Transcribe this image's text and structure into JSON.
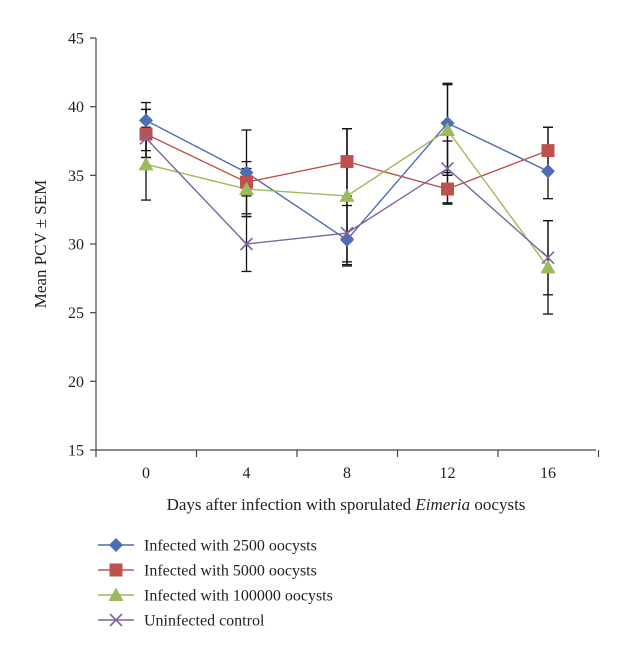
{
  "chart_data": {
    "type": "line",
    "title": "",
    "xlabel": "Days after infection with sporulated Eimeria oocysts",
    "xlabel_parts": [
      "Days after infection with sporulated ",
      "Eimeria",
      " oocysts"
    ],
    "ylabel": "Mean PCV ± SEM",
    "categories": [
      "0",
      "4",
      "8",
      "12",
      "16"
    ],
    "ylim": [
      15,
      45
    ],
    "yticks": [
      15,
      20,
      25,
      30,
      35,
      40,
      45
    ],
    "grid": false,
    "legend_position": "bottom-left",
    "series": [
      {
        "name": "Infected with 2500 oocysts",
        "color": "#4a6fb5",
        "marker": "diamond",
        "values": [
          39.0,
          35.2,
          30.3,
          38.8,
          35.3
        ],
        "err_low": [
          36.8,
          32.2,
          28.5,
          35.0,
          33.3
        ],
        "err_high": [
          40.3,
          38.3,
          38.4,
          41.6,
          38.5
        ]
      },
      {
        "name": "Infected with 5000 oocysts",
        "color": "#c0504d",
        "marker": "square",
        "values": [
          38.0,
          34.5,
          36.0,
          34.0,
          36.8
        ],
        "err_low": [
          36.3,
          33.5,
          33.5,
          32.9,
          35.3
        ],
        "err_high": [
          39.8,
          35.5,
          38.4,
          35.2,
          38.5
        ]
      },
      {
        "name": "Infected with 100000 oocysts",
        "color": "#9bbb59",
        "marker": "triangle",
        "values": [
          35.8,
          34.0,
          33.5,
          38.3,
          28.3
        ],
        "err_low": [
          33.2,
          32.0,
          28.4,
          35.0,
          24.9
        ],
        "err_high": [
          38.5,
          36.0,
          38.4,
          41.7,
          31.7
        ]
      },
      {
        "name": "Uninfected control",
        "color": "#8064a2",
        "marker": "x",
        "values": [
          37.7,
          30.0,
          30.8,
          35.5,
          29.0
        ],
        "err_low": [
          36.3,
          28.0,
          28.7,
          33.0,
          26.3
        ],
        "err_high": [
          39.8,
          32.0,
          32.8,
          37.5,
          31.7
        ]
      }
    ]
  }
}
